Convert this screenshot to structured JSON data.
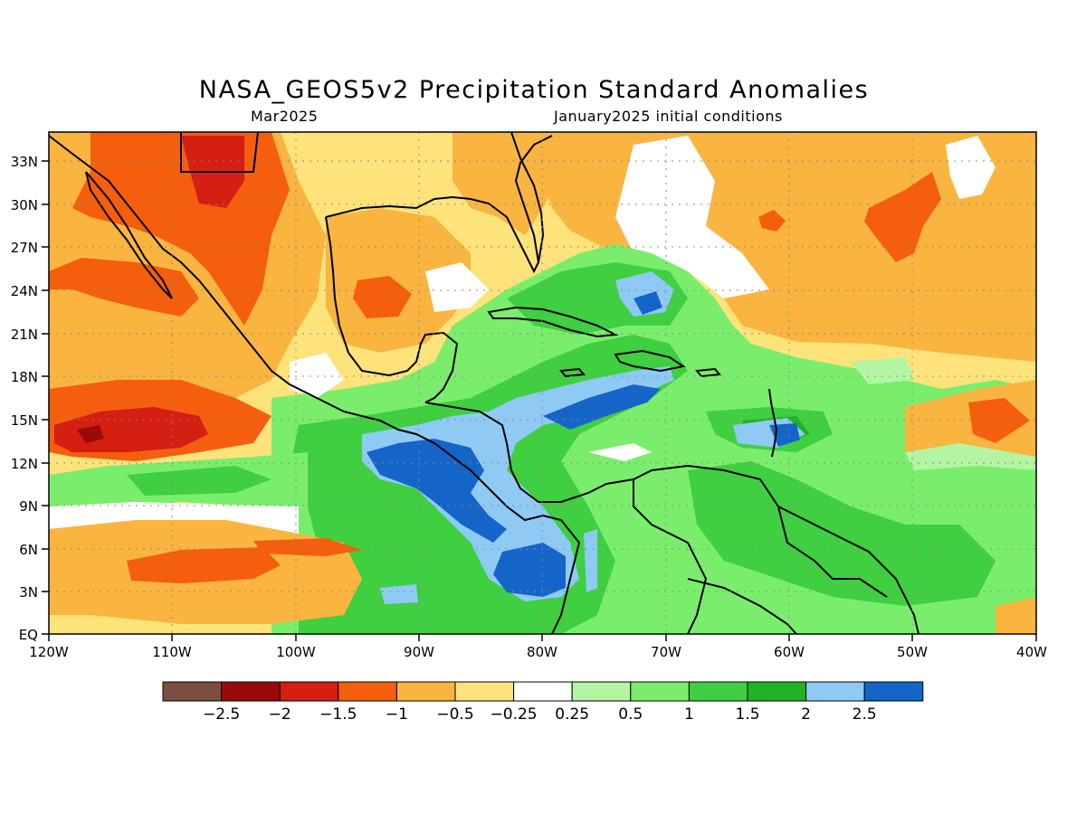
{
  "title": "NASA_GEOS5v2 Precipitation Standard Anomalies",
  "subtitle_left": "Mar2025",
  "subtitle_right": "January2025 initial conditions",
  "lat_labels": [
    "33N",
    "30N",
    "27N",
    "24N",
    "21N",
    "18N",
    "15N",
    "12N",
    "9N",
    "6N",
    "3N",
    "EQ"
  ],
  "lon_labels": [
    "120W",
    "110W",
    "100W",
    "90W",
    "80W",
    "70W",
    "60W",
    "50W",
    "40W"
  ],
  "colorbar": {
    "labels": [
      "−2.5",
      "−2",
      "−1.5",
      "−1",
      "−0.5",
      "−0.25",
      "0.25",
      "0.5",
      "1",
      "1.5",
      "2",
      "2.5"
    ],
    "colors": [
      "#7a4e3e",
      "#9b0a0a",
      "#d41f12",
      "#f55e0d",
      "#f9b540",
      "#fee37b",
      "#ffffff",
      "#b4f5a3",
      "#7aee6c",
      "#3fcf41",
      "#1fb323",
      "#8fcaf5",
      "#1565c8"
    ]
  }
}
